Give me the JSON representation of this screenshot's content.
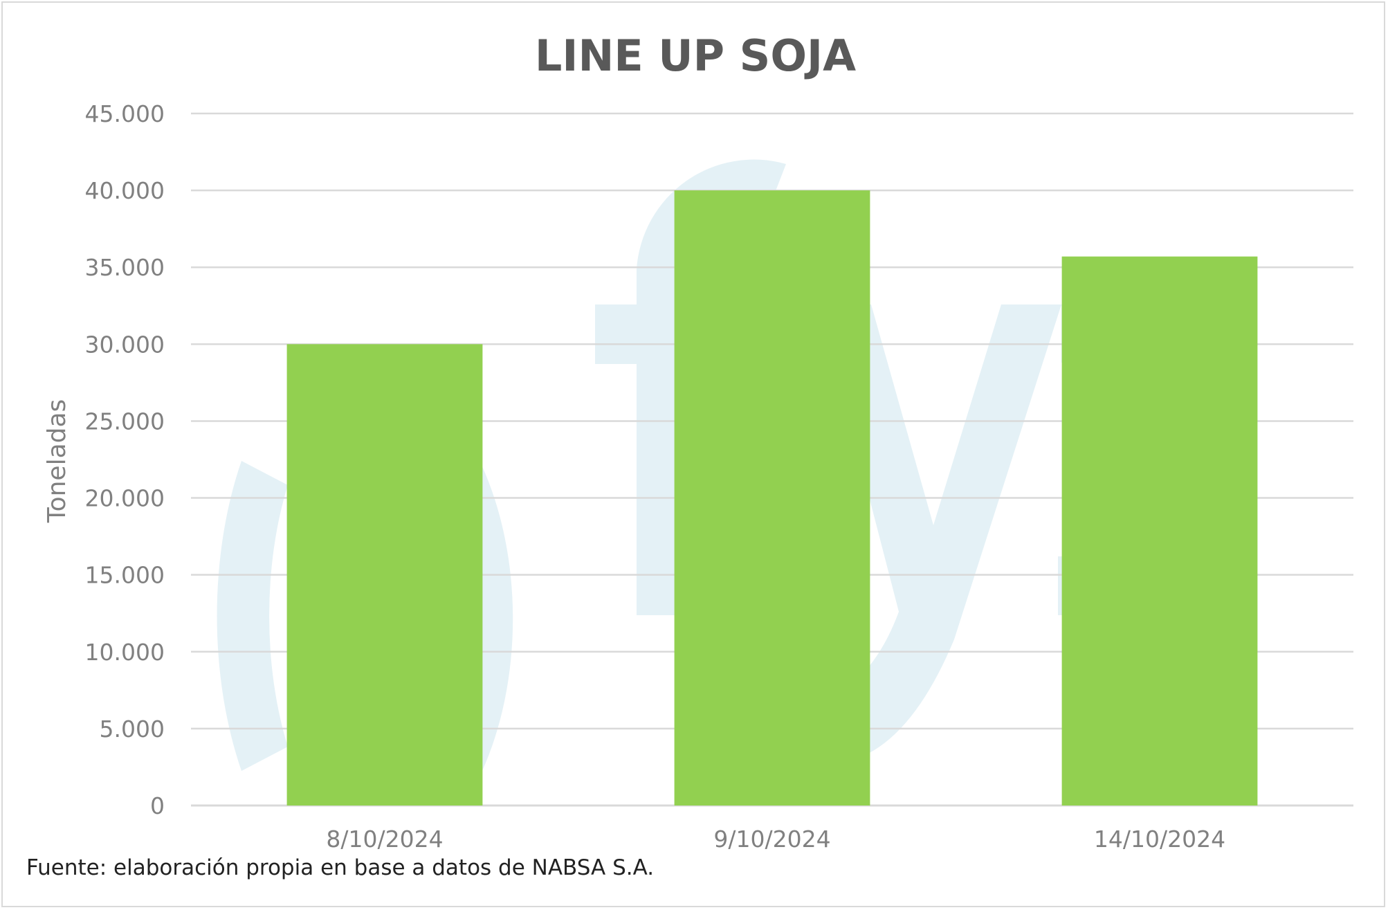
{
  "chart_data": {
    "type": "bar",
    "title": "LINE UP SOJA",
    "ylabel": "Toneladas",
    "xlabel": "",
    "categories": [
      "8/10/2024",
      "9/10/2024",
      "14/10/2024"
    ],
    "values": [
      30000,
      40000,
      35700
    ],
    "ylim": [
      0,
      45000
    ],
    "yticks": [
      0,
      5000,
      10000,
      15000,
      20000,
      25000,
      30000,
      35000,
      40000,
      45000
    ],
    "ytick_labels": [
      "0",
      "5.000",
      "10.000",
      "15.000",
      "20.000",
      "25.000",
      "30.000",
      "35.000",
      "40.000",
      "45.000"
    ],
    "grid": true,
    "legend": "none"
  },
  "source_note": "Fuente: elaboración propia en base a datos de NABSA S.A.",
  "colors": {
    "bar": "#92d050",
    "title": "#595959",
    "ticks": "#808080",
    "grid": "#d9d9d9",
    "watermark": "#e4f1f6"
  },
  "watermark_logo": "gtyp-watermark-icon"
}
